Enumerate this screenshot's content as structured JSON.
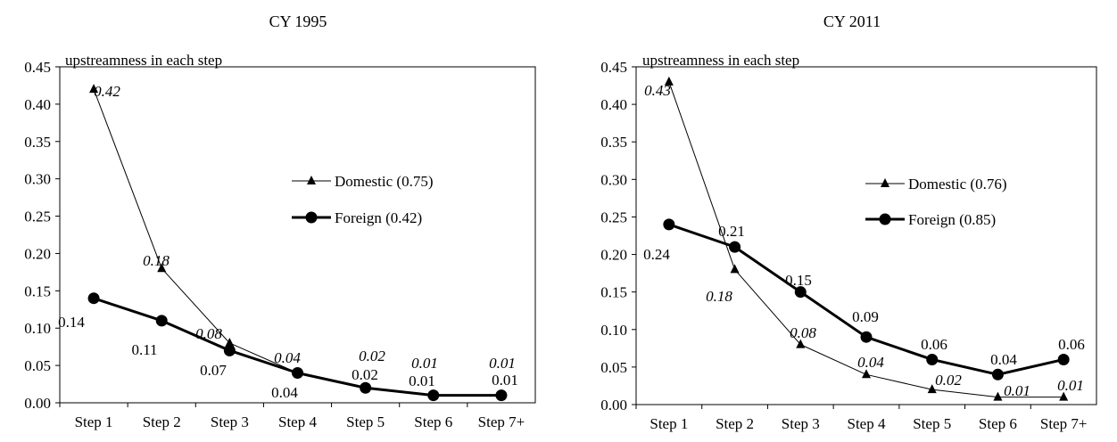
{
  "chart_data": [
    {
      "type": "line",
      "title": "CY 1995",
      "ylabel": "upstreamness  in each step",
      "categories": [
        "Step 1",
        "Step 2",
        "Step 3",
        "Step 4",
        "Step 5",
        "Step 6",
        "Step 7+"
      ],
      "ylim": [
        0,
        0.45
      ],
      "yticks": [
        "0.00",
        "0.05",
        "0.10",
        "0.15",
        "0.20",
        "0.25",
        "0.30",
        "0.35",
        "0.40",
        "0.45"
      ],
      "legend_position": "center-right",
      "grid": false,
      "series": [
        {
          "name": "Domestic (0.75)",
          "marker": "triangle",
          "values": [
            0.42,
            0.18,
            0.08,
            0.04,
            0.02,
            0.01,
            0.01
          ],
          "labels": [
            "0.42",
            "0.18",
            "0.08",
            "0.04",
            "0.02",
            "0.01",
            "0.01"
          ]
        },
        {
          "name": "Foreign (0.42)",
          "marker": "circle",
          "values": [
            0.14,
            0.11,
            0.07,
            0.04,
            0.02,
            0.01,
            0.01
          ],
          "labels": [
            "0.14",
            "0.11",
            "0.07",
            "0.04",
            "0.02",
            "0.01",
            "0.01"
          ]
        }
      ]
    },
    {
      "type": "line",
      "title": "CY 2011",
      "ylabel": "upstreamness  in each step",
      "categories": [
        "Step 1",
        "Step 2",
        "Step 3",
        "Step 4",
        "Step 5",
        "Step 6",
        "Step 7+"
      ],
      "ylim": [
        0,
        0.45
      ],
      "yticks": [
        "0.00",
        "0.05",
        "0.10",
        "0.15",
        "0.20",
        "0.25",
        "0.30",
        "0.35",
        "0.40",
        "0.45"
      ],
      "legend_position": "center-right",
      "grid": false,
      "series": [
        {
          "name": "Domestic (0.76)",
          "marker": "triangle",
          "values": [
            0.43,
            0.18,
            0.08,
            0.04,
            0.02,
            0.01,
            0.01
          ],
          "labels": [
            "0.43",
            "0.18",
            "0.08",
            "0.04",
            "0.02",
            "0.01",
            "0.01"
          ]
        },
        {
          "name": "Foreign (0.85)",
          "marker": "circle",
          "values": [
            0.24,
            0.21,
            0.15,
            0.09,
            0.06,
            0.04,
            0.06
          ],
          "labels": [
            "0.24",
            "0.21",
            "0.15",
            "0.09",
            "0.06",
            "0.04",
            "0.06"
          ]
        }
      ]
    }
  ]
}
